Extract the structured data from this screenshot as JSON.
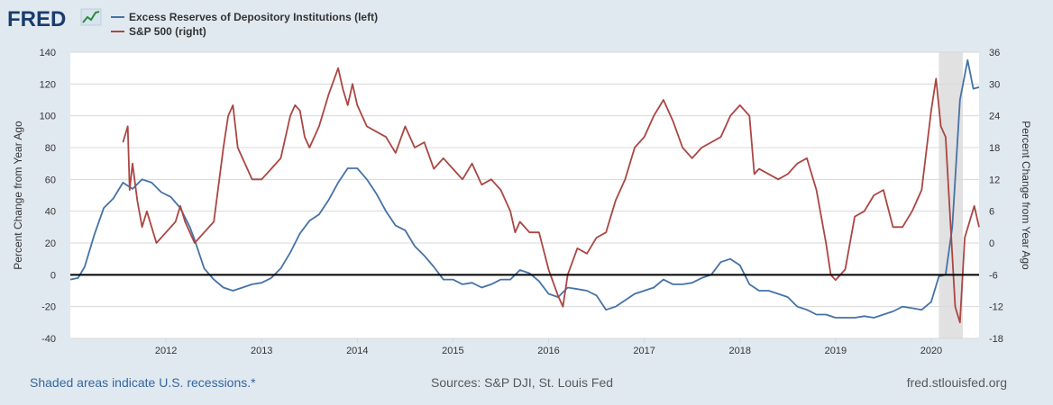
{
  "logo": {
    "text": "FRED",
    "icon": "chart-line-icon"
  },
  "legend": [
    {
      "label": "Excess Reserves of Depository Institutions (left)",
      "color": "#4572a7"
    },
    {
      "label": "S&P 500 (right)",
      "color": "#aa4643"
    }
  ],
  "footer": {
    "recessions_note": "Shaded areas indicate U.S. recessions.*",
    "sources": "Sources: S&P DJI, St. Louis Fed",
    "site": "fred.stlouisfed.org"
  },
  "colors": {
    "background": "#e1e9f0",
    "grid": "#d8d8d8",
    "recession": "#e1e1e1",
    "zero_line": "#000000"
  },
  "chart_data": {
    "type": "line",
    "title": "",
    "x_range": [
      2011.0,
      2020.5
    ],
    "x_ticks": [
      "2012",
      "2013",
      "2014",
      "2015",
      "2016",
      "2017",
      "2018",
      "2019",
      "2020"
    ],
    "recession": {
      "start": 2020.08,
      "end": 2020.33
    },
    "y_left": {
      "label": "Percent Change from Year Ago",
      "range": [
        -40,
        140
      ],
      "ticks": [
        "140",
        "120",
        "100",
        "80",
        "60",
        "40",
        "20",
        "0",
        "-20",
        "-40"
      ],
      "reference_line": 0
    },
    "y_right": {
      "label": "Percent Change from Year Ago",
      "range": [
        -18,
        36
      ],
      "ticks": [
        "36",
        "30",
        "24",
        "18",
        "12",
        "6",
        "0",
        "-6",
        "-12",
        "-18"
      ]
    },
    "series": [
      {
        "name": "Excess Reserves of Depository Institutions (left)",
        "axis": "left",
        "color": "#4572a7",
        "x": [
          2011.0,
          2011.08,
          2011.15,
          2011.25,
          2011.35,
          2011.45,
          2011.55,
          2011.65,
          2011.75,
          2011.85,
          2011.95,
          2012.05,
          2012.15,
          2012.25,
          2012.3,
          2012.4,
          2012.5,
          2012.6,
          2012.7,
          2012.8,
          2012.9,
          2013.0,
          2013.1,
          2013.2,
          2013.3,
          2013.4,
          2013.5,
          2013.6,
          2013.7,
          2013.8,
          2013.9,
          2014.0,
          2014.1,
          2014.2,
          2014.3,
          2014.4,
          2014.5,
          2014.6,
          2014.7,
          2014.8,
          2014.9,
          2015.0,
          2015.1,
          2015.2,
          2015.3,
          2015.4,
          2015.5,
          2015.6,
          2015.7,
          2015.8,
          2015.9,
          2016.0,
          2016.1,
          2016.2,
          2016.3,
          2016.4,
          2016.5,
          2016.6,
          2016.7,
          2016.8,
          2016.9,
          2017.0,
          2017.1,
          2017.2,
          2017.3,
          2017.4,
          2017.5,
          2017.6,
          2017.7,
          2017.8,
          2017.9,
          2018.0,
          2018.1,
          2018.2,
          2018.3,
          2018.4,
          2018.5,
          2018.6,
          2018.7,
          2018.8,
          2018.9,
          2019.0,
          2019.1,
          2019.2,
          2019.3,
          2019.4,
          2019.5,
          2019.6,
          2019.7,
          2019.8,
          2019.9,
          2020.0,
          2020.08,
          2020.15,
          2020.22,
          2020.3,
          2020.38,
          2020.44,
          2020.5
        ],
        "values": [
          -3,
          -2,
          5,
          25,
          42,
          48,
          58,
          54,
          60,
          58,
          52,
          49,
          42,
          30,
          22,
          4,
          -3,
          -8,
          -10,
          -8,
          -6,
          -5,
          -2,
          4,
          14,
          26,
          34,
          38,
          47,
          58,
          67,
          67,
          60,
          51,
          40,
          31,
          28,
          18,
          12,
          5,
          -3,
          -3,
          -6,
          -5,
          -8,
          -6,
          -3,
          -3,
          3,
          1,
          -4,
          -12,
          -14,
          -8,
          -9,
          -10,
          -13,
          -22,
          -20,
          -16,
          -12,
          -10,
          -8,
          -3,
          -6,
          -6,
          -5,
          -2,
          0,
          8,
          10,
          6,
          -6,
          -10,
          -10,
          -12,
          -14,
          -20,
          -22,
          -25,
          -25,
          -27,
          -27,
          -27,
          -26,
          -27,
          -25,
          -23,
          -20,
          -21,
          -22,
          -17,
          -1,
          0,
          30,
          110,
          135,
          117,
          118
        ]
      },
      {
        "name": "S&P 500 (right)",
        "axis": "right",
        "color": "#aa4643",
        "x": [
          2011.55,
          2011.6,
          2011.62,
          2011.65,
          2011.7,
          2011.75,
          2011.8,
          2011.9,
          2012.0,
          2012.1,
          2012.15,
          2012.2,
          2012.3,
          2012.4,
          2012.5,
          2012.6,
          2012.65,
          2012.7,
          2012.75,
          2012.8,
          2012.9,
          2013.0,
          2013.1,
          2013.2,
          2013.3,
          2013.35,
          2013.4,
          2013.45,
          2013.5,
          2013.6,
          2013.7,
          2013.8,
          2013.85,
          2013.9,
          2013.95,
          2014.0,
          2014.1,
          2014.2,
          2014.3,
          2014.4,
          2014.5,
          2014.6,
          2014.7,
          2014.8,
          2014.9,
          2015.0,
          2015.1,
          2015.2,
          2015.3,
          2015.4,
          2015.5,
          2015.6,
          2015.65,
          2015.7,
          2015.8,
          2015.9,
          2016.0,
          2016.1,
          2016.15,
          2016.2,
          2016.3,
          2016.4,
          2016.5,
          2016.6,
          2016.7,
          2016.8,
          2016.9,
          2017.0,
          2017.1,
          2017.2,
          2017.3,
          2017.4,
          2017.5,
          2017.6,
          2017.7,
          2017.8,
          2017.9,
          2018.0,
          2018.1,
          2018.15,
          2018.2,
          2018.3,
          2018.4,
          2018.5,
          2018.6,
          2018.7,
          2018.8,
          2018.9,
          2018.95,
          2019.0,
          2019.1,
          2019.2,
          2019.3,
          2019.4,
          2019.5,
          2019.6,
          2019.7,
          2019.8,
          2019.9,
          2020.0,
          2020.05,
          2020.1,
          2020.15,
          2020.2,
          2020.25,
          2020.3,
          2020.35,
          2020.4,
          2020.45,
          2020.5
        ],
        "values": [
          19,
          22,
          10,
          15,
          8,
          3,
          6,
          0,
          2,
          4,
          7,
          4,
          0,
          2,
          4,
          18,
          24,
          26,
          18,
          16,
          12,
          12,
          14,
          16,
          24,
          26,
          25,
          20,
          18,
          22,
          28,
          33,
          29,
          26,
          30,
          26,
          22,
          21,
          20,
          17,
          22,
          18,
          19,
          14,
          16,
          14,
          12,
          15,
          11,
          12,
          10,
          6,
          2,
          4,
          2,
          2,
          -5,
          -10,
          -12,
          -6,
          -1,
          -2,
          1,
          2,
          8,
          12,
          18,
          20,
          24,
          27,
          23,
          18,
          16,
          18,
          19,
          20,
          24,
          26,
          24,
          13,
          14,
          13,
          12,
          13,
          15,
          16,
          10,
          0,
          -6,
          -7,
          -5,
          5,
          6,
          9,
          10,
          3,
          3,
          6,
          10,
          25,
          31,
          22,
          20,
          4,
          -12,
          -15,
          1,
          4,
          7,
          3
        ]
      }
    ]
  }
}
